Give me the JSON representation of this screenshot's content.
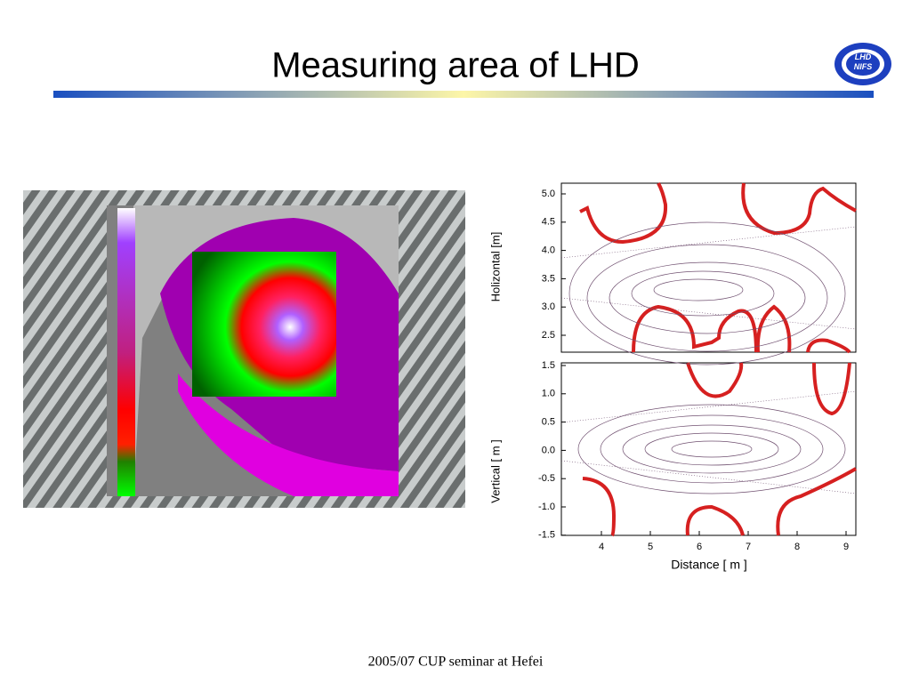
{
  "header": {
    "title": "Measuring area of LHD",
    "logo": [
      "LHD",
      "NIFS"
    ]
  },
  "plots": [
    {
      "y_label": "Holizontal [m]",
      "yticks": [
        "5.0",
        "4.5",
        "4.0",
        "3.5",
        "3.0",
        "2.5"
      ]
    },
    {
      "y_label": "Vertical [ m ]",
      "yticks": [
        "1.5",
        "1.0",
        "0.5",
        "0.0",
        "-0.5",
        "-1.0",
        "-1.5"
      ],
      "xticks": [
        "4",
        "5",
        "6",
        "7",
        "8",
        "9"
      ],
      "x_label": "Distance  [ m ]"
    }
  ],
  "footer": "2005/07 CUP seminar at Hefei"
}
